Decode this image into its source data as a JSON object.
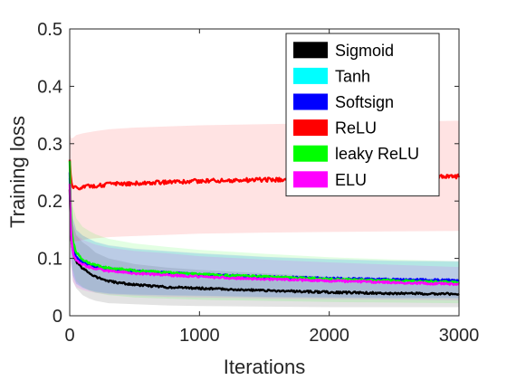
{
  "chart_data": {
    "type": "line",
    "title": "",
    "xlabel": "Iterations",
    "ylabel": "Training loss",
    "xlim": [
      0,
      3000
    ],
    "ylim": [
      0,
      0.5
    ],
    "xticks": [
      0,
      1000,
      2000,
      3000
    ],
    "yticks": [
      0,
      0.1,
      0.2,
      0.3,
      0.4,
      0.5
    ],
    "xtick_labels": [
      "0",
      "1000",
      "2000",
      "3000"
    ],
    "ytick_labels": [
      "0",
      "0.1",
      "0.2",
      "0.3",
      "0.4",
      "0.5"
    ],
    "grid": false,
    "legend_position": "top-right",
    "shaded_bands": true,
    "x": [
      0,
      10,
      25,
      50,
      100,
      150,
      200,
      300,
      500,
      750,
      1000,
      1500,
      2000,
      2500,
      3000
    ],
    "series": [
      {
        "name": "Sigmoid",
        "color": "#000000",
        "values": [
          0.22,
          0.14,
          0.11,
          0.094,
          0.082,
          0.075,
          0.068,
          0.06,
          0.054,
          0.05,
          0.048,
          0.044,
          0.041,
          0.039,
          0.038
        ],
        "band_low": [
          0.17,
          0.09,
          0.06,
          0.048,
          0.036,
          0.03,
          0.026,
          0.022,
          0.02,
          0.018,
          0.017,
          0.016,
          0.015,
          0.015,
          0.015
        ],
        "band_high": [
          0.27,
          0.19,
          0.16,
          0.14,
          0.128,
          0.12,
          0.11,
          0.1,
          0.09,
          0.084,
          0.08,
          0.074,
          0.068,
          0.064,
          0.062
        ]
      },
      {
        "name": "Tanh",
        "color": "#00ffff",
        "values": [
          0.24,
          0.15,
          0.12,
          0.1,
          0.092,
          0.088,
          0.084,
          0.08,
          0.076,
          0.073,
          0.07,
          0.066,
          0.063,
          0.061,
          0.06
        ],
        "band_low": [
          0.19,
          0.1,
          0.07,
          0.055,
          0.048,
          0.044,
          0.041,
          0.038,
          0.036,
          0.035,
          0.034,
          0.032,
          0.031,
          0.03,
          0.03
        ],
        "band_high": [
          0.29,
          0.2,
          0.17,
          0.15,
          0.14,
          0.134,
          0.128,
          0.122,
          0.116,
          0.112,
          0.108,
          0.102,
          0.098,
          0.095,
          0.094
        ]
      },
      {
        "name": "Softsign",
        "color": "#0000ff",
        "values": [
          0.25,
          0.15,
          0.12,
          0.102,
          0.093,
          0.089,
          0.086,
          0.082,
          0.078,
          0.075,
          0.072,
          0.068,
          0.065,
          0.063,
          0.062
        ],
        "band_low": [
          0.2,
          0.1,
          0.07,
          0.056,
          0.049,
          0.045,
          0.042,
          0.039,
          0.037,
          0.036,
          0.035,
          0.033,
          0.032,
          0.031,
          0.031
        ],
        "band_high": [
          0.3,
          0.2,
          0.17,
          0.15,
          0.14,
          0.134,
          0.129,
          0.123,
          0.117,
          0.113,
          0.109,
          0.103,
          0.099,
          0.096,
          0.095
        ]
      },
      {
        "name": "ReLU",
        "color": "#ff0000",
        "values": [
          0.272,
          0.235,
          0.224,
          0.222,
          0.225,
          0.226,
          0.227,
          0.229,
          0.231,
          0.233,
          0.235,
          0.237,
          0.239,
          0.241,
          0.243
        ],
        "band_low": [
          0.18,
          0.14,
          0.13,
          0.13,
          0.132,
          0.134,
          0.135,
          0.137,
          0.139,
          0.141,
          0.143,
          0.145,
          0.146,
          0.147,
          0.148
        ],
        "band_high": [
          0.32,
          0.31,
          0.31,
          0.315,
          0.318,
          0.32,
          0.322,
          0.325,
          0.328,
          0.33,
          0.332,
          0.334,
          0.336,
          0.338,
          0.34
        ]
      },
      {
        "name": "leaky ReLU",
        "color": "#00ff00",
        "values": [
          0.27,
          0.16,
          0.13,
          0.11,
          0.098,
          0.092,
          0.088,
          0.083,
          0.079,
          0.075,
          0.072,
          0.068,
          0.064,
          0.061,
          0.058
        ],
        "band_low": [
          0.22,
          0.11,
          0.08,
          0.06,
          0.05,
          0.044,
          0.04,
          0.036,
          0.032,
          0.03,
          0.028,
          0.026,
          0.024,
          0.023,
          0.022
        ],
        "band_high": [
          0.3,
          0.22,
          0.19,
          0.17,
          0.155,
          0.148,
          0.142,
          0.134,
          0.126,
          0.12,
          0.115,
          0.108,
          0.102,
          0.098,
          0.095
        ]
      },
      {
        "name": "ELU",
        "color": "#ff00ff",
        "values": [
          0.23,
          0.14,
          0.11,
          0.096,
          0.089,
          0.085,
          0.082,
          0.078,
          0.074,
          0.071,
          0.068,
          0.064,
          0.061,
          0.058,
          0.055
        ],
        "band_low": [
          0.18,
          0.09,
          0.06,
          0.05,
          0.045,
          0.042,
          0.04,
          0.037,
          0.035,
          0.033,
          0.032,
          0.03,
          0.029,
          0.028,
          0.027
        ],
        "band_high": [
          0.28,
          0.19,
          0.16,
          0.142,
          0.133,
          0.128,
          0.124,
          0.119,
          0.113,
          0.109,
          0.104,
          0.098,
          0.093,
          0.089,
          0.085
        ]
      }
    ]
  }
}
